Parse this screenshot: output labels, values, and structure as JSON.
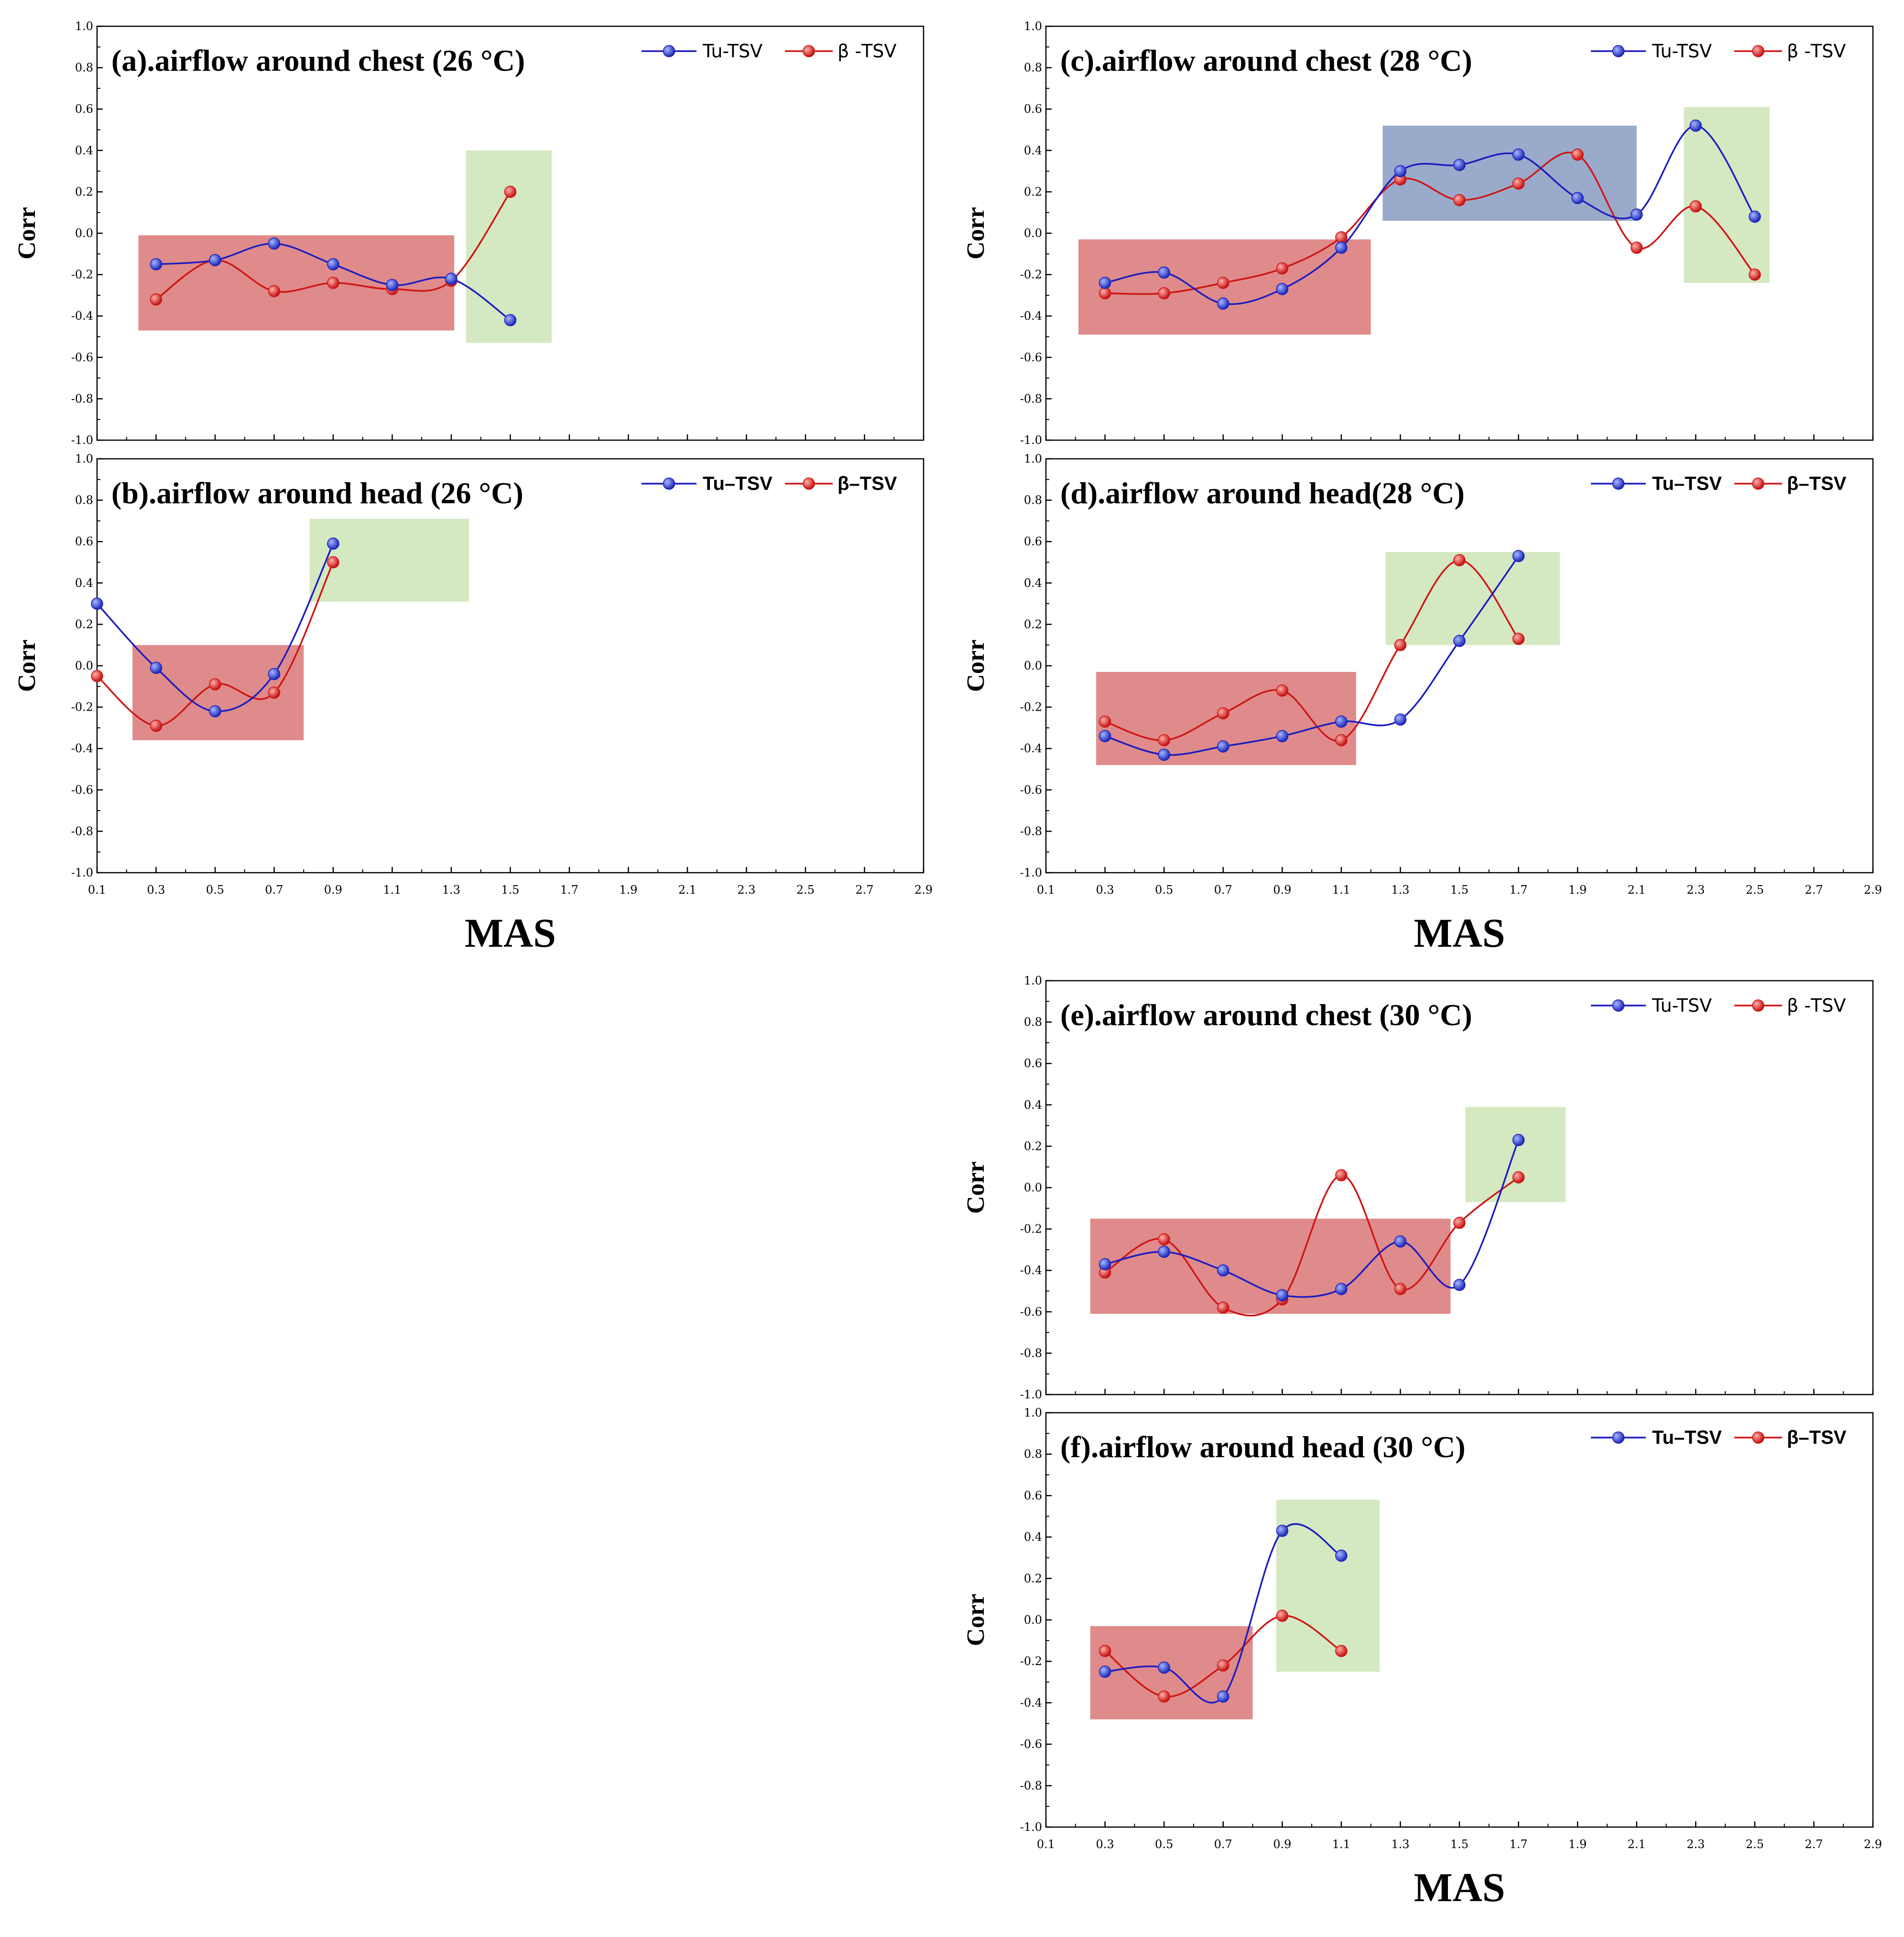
{
  "chart_data": [
    {
      "id": "a",
      "type": "line",
      "title": "(a).airflow around chest (26 °C)",
      "ylabel": "Corr",
      "xlabel": "",
      "xlim": [
        0.1,
        2.9
      ],
      "ylim": [
        -1.0,
        1.0
      ],
      "xticks": [
        "0.1",
        "0.3",
        "0.5",
        "0.7",
        "0.9",
        "1.1",
        "1.3",
        "1.5",
        "1.7",
        "1.9",
        "2.1",
        "2.3",
        "2.5",
        "2.7",
        "2.9"
      ],
      "yticks": [
        "1.0",
        "0.8",
        "0.6",
        "0.4",
        "0.2",
        "0.0",
        "-0.2",
        "-0.4",
        "-0.6",
        "-0.8",
        "-1.0"
      ],
      "show_xticks": false,
      "legend_bold": false,
      "series": [
        {
          "name": "Tu-TSV",
          "color": "#1c1cc0",
          "x": [
            0.3,
            0.5,
            0.7,
            0.9,
            1.1,
            1.3,
            1.5
          ],
          "y": [
            -0.15,
            -0.13,
            -0.05,
            -0.15,
            -0.25,
            -0.22,
            -0.42
          ]
        },
        {
          "name": "β -TSV",
          "color": "#d01414",
          "x": [
            0.3,
            0.5,
            0.7,
            0.9,
            1.1,
            1.3,
            1.5
          ],
          "y": [
            -0.32,
            -0.13,
            -0.28,
            -0.24,
            -0.27,
            -0.23,
            0.2
          ]
        }
      ],
      "regions": [
        {
          "color": "#d66a6a",
          "x": [
            0.24,
            1.31
          ],
          "y": [
            -0.47,
            -0.01
          ]
        },
        {
          "color": "#c8e1b0",
          "x": [
            1.35,
            1.64
          ],
          "y": [
            -0.53,
            0.4
          ]
        }
      ]
    },
    {
      "id": "b",
      "type": "line",
      "title": "(b).airflow around head (26 °C)",
      "ylabel": "Corr",
      "xlabel": "MAS",
      "xlim": [
        0.1,
        2.9
      ],
      "ylim": [
        -1.0,
        1.0
      ],
      "xticks": [
        "0.1",
        "0.3",
        "0.5",
        "0.7",
        "0.9",
        "1.1",
        "1.3",
        "1.5",
        "1.7",
        "1.9",
        "2.1",
        "2.3",
        "2.5",
        "2.7",
        "2.9"
      ],
      "yticks": [
        "1.0",
        "0.8",
        "0.6",
        "0.4",
        "0.2",
        "0.0",
        "-0.2",
        "-0.4",
        "-0.6",
        "-0.8",
        "-1.0"
      ],
      "show_xticks": true,
      "legend_bold": true,
      "series": [
        {
          "name": "Tu–TSV",
          "color": "#1c1cc0",
          "x": [
            0.1,
            0.3,
            0.5,
            0.7,
            0.9
          ],
          "y": [
            0.3,
            -0.01,
            -0.22,
            -0.04,
            0.59
          ]
        },
        {
          "name": "β–TSV",
          "color": "#d01414",
          "x": [
            0.1,
            0.3,
            0.5,
            0.7,
            0.9
          ],
          "y": [
            -0.05,
            -0.29,
            -0.09,
            -0.13,
            0.5
          ]
        }
      ],
      "regions": [
        {
          "color": "#d66a6a",
          "x": [
            0.22,
            0.8
          ],
          "y": [
            -0.36,
            0.1
          ]
        },
        {
          "color": "#c8e1b0",
          "x": [
            0.82,
            1.36
          ],
          "y": [
            0.31,
            0.71
          ]
        }
      ]
    },
    {
      "id": "c",
      "type": "line",
      "title": "(c).airflow around chest (28 °C)",
      "ylabel": "Corr",
      "xlabel": "",
      "xlim": [
        0.1,
        2.9
      ],
      "ylim": [
        -1.0,
        1.0
      ],
      "xticks": [
        "0.1",
        "0.3",
        "0.5",
        "0.7",
        "0.9",
        "1.1",
        "1.3",
        "1.5",
        "1.7",
        "1.9",
        "2.1",
        "2.3",
        "2.5",
        "2.7",
        "2.9"
      ],
      "yticks": [
        "1.0",
        "0.8",
        "0.6",
        "0.4",
        "0.2",
        "0.0",
        "-0.2",
        "-0.4",
        "-0.6",
        "-0.8",
        "-1.0"
      ],
      "show_xticks": false,
      "legend_bold": false,
      "series": [
        {
          "name": "Tu-TSV",
          "color": "#1c1cc0",
          "x": [
            0.3,
            0.5,
            0.7,
            0.9,
            1.1,
            1.3,
            1.5,
            1.7,
            1.9,
            2.1,
            2.3,
            2.5
          ],
          "y": [
            -0.24,
            -0.19,
            -0.34,
            -0.27,
            -0.07,
            0.3,
            0.33,
            0.38,
            0.17,
            0.09,
            0.52,
            0.08
          ]
        },
        {
          "name": "β -TSV",
          "color": "#d01414",
          "x": [
            0.3,
            0.5,
            0.7,
            0.9,
            1.1,
            1.3,
            1.5,
            1.7,
            1.9,
            2.1,
            2.3,
            2.5
          ],
          "y": [
            -0.29,
            -0.29,
            -0.24,
            -0.17,
            -0.02,
            0.26,
            0.16,
            0.24,
            0.38,
            -0.07,
            0.13,
            -0.2
          ]
        }
      ],
      "regions": [
        {
          "color": "#d66a6a",
          "x": [
            0.21,
            1.2
          ],
          "y": [
            -0.49,
            -0.03
          ]
        },
        {
          "color": "#7e92bb",
          "x": [
            1.24,
            2.1
          ],
          "y": [
            0.06,
            0.52
          ]
        },
        {
          "color": "#c8e1b0",
          "x": [
            2.26,
            2.55
          ],
          "y": [
            -0.24,
            0.61
          ]
        }
      ]
    },
    {
      "id": "d",
      "type": "line",
      "title": "(d).airflow around head(28 °C)",
      "ylabel": "Corr",
      "xlabel": "MAS",
      "xlim": [
        0.1,
        2.9
      ],
      "ylim": [
        -1.0,
        1.0
      ],
      "xticks": [
        "0.1",
        "0.3",
        "0.5",
        "0.7",
        "0.9",
        "1.1",
        "1.3",
        "1.5",
        "1.7",
        "1.9",
        "2.1",
        "2.3",
        "2.5",
        "2.7",
        "2.9"
      ],
      "yticks": [
        "1.0",
        "0.8",
        "0.6",
        "0.4",
        "0.2",
        "0.0",
        "-0.2",
        "-0.4",
        "-0.6",
        "-0.8",
        "-1.0"
      ],
      "show_xticks": true,
      "legend_bold": true,
      "series": [
        {
          "name": "Tu–TSV",
          "color": "#1c1cc0",
          "x": [
            0.3,
            0.5,
            0.7,
            0.9,
            1.1,
            1.3,
            1.5,
            1.7
          ],
          "y": [
            -0.34,
            -0.43,
            -0.39,
            -0.34,
            -0.27,
            -0.26,
            0.12,
            0.53
          ]
        },
        {
          "name": "β–TSV",
          "color": "#d01414",
          "x": [
            0.3,
            0.5,
            0.7,
            0.9,
            1.1,
            1.3,
            1.5,
            1.7
          ],
          "y": [
            -0.27,
            -0.36,
            -0.23,
            -0.12,
            -0.36,
            0.1,
            0.51,
            0.13
          ]
        }
      ],
      "regions": [
        {
          "color": "#d66a6a",
          "x": [
            0.27,
            1.15
          ],
          "y": [
            -0.48,
            -0.03
          ]
        },
        {
          "color": "#c8e1b0",
          "x": [
            1.25,
            1.84
          ],
          "y": [
            0.1,
            0.55
          ]
        }
      ]
    },
    {
      "id": "e",
      "type": "line",
      "title": "(e).airflow around chest (30 °C)",
      "ylabel": "Corr",
      "xlabel": "",
      "xlim": [
        0.1,
        2.9
      ],
      "ylim": [
        -1.0,
        1.0
      ],
      "xticks": [
        "0.1",
        "0.3",
        "0.5",
        "0.7",
        "0.9",
        "1.1",
        "1.3",
        "1.5",
        "1.7",
        "1.9",
        "2.1",
        "2.3",
        "2.5",
        "2.7",
        "2.9"
      ],
      "yticks": [
        "1.0",
        "0.8",
        "0.6",
        "0.4",
        "0.2",
        "0.0",
        "-0.2",
        "-0.4",
        "-0.6",
        "-0.8",
        "-1.0"
      ],
      "show_xticks": false,
      "legend_bold": false,
      "series": [
        {
          "name": "Tu-TSV",
          "color": "#1c1cc0",
          "x": [
            0.3,
            0.5,
            0.7,
            0.9,
            1.1,
            1.3,
            1.5,
            1.7
          ],
          "y": [
            -0.37,
            -0.31,
            -0.4,
            -0.52,
            -0.49,
            -0.26,
            -0.47,
            0.23
          ]
        },
        {
          "name": "β -TSV",
          "color": "#d01414",
          "x": [
            0.3,
            0.5,
            0.7,
            0.9,
            1.1,
            1.3,
            1.5,
            1.7
          ],
          "y": [
            -0.41,
            -0.25,
            -0.58,
            -0.54,
            0.06,
            -0.49,
            -0.17,
            0.05
          ]
        }
      ],
      "regions": [
        {
          "color": "#d66a6a",
          "x": [
            0.25,
            1.47
          ],
          "y": [
            -0.61,
            -0.15
          ]
        },
        {
          "color": "#c8e1b0",
          "x": [
            1.52,
            1.86
          ],
          "y": [
            -0.07,
            0.39
          ]
        }
      ]
    },
    {
      "id": "f",
      "type": "line",
      "title": "(f).airflow around head (30 °C)",
      "ylabel": "Corr",
      "xlabel": "MAS",
      "xlim": [
        0.1,
        2.9
      ],
      "ylim": [
        -1.0,
        1.0
      ],
      "xticks": [
        "0.1",
        "0.3",
        "0.5",
        "0.7",
        "0.9",
        "1.1",
        "1.3",
        "1.5",
        "1.7",
        "1.9",
        "2.1",
        "2.3",
        "2.5",
        "2.7",
        "2.9"
      ],
      "yticks": [
        "1.0",
        "0.8",
        "0.6",
        "0.4",
        "0.2",
        "0.0",
        "-0.2",
        "-0.4",
        "-0.6",
        "-0.8",
        "-1.0"
      ],
      "show_xticks": true,
      "legend_bold": true,
      "series": [
        {
          "name": "Tu–TSV",
          "color": "#1c1cc0",
          "x": [
            0.3,
            0.5,
            0.7,
            0.9,
            1.1
          ],
          "y": [
            -0.25,
            -0.23,
            -0.37,
            0.43,
            0.31
          ]
        },
        {
          "name": "β–TSV",
          "color": "#d01414",
          "x": [
            0.3,
            0.5,
            0.7,
            0.9,
            1.1
          ],
          "y": [
            -0.15,
            -0.37,
            -0.22,
            0.02,
            -0.15
          ]
        }
      ],
      "regions": [
        {
          "color": "#d66a6a",
          "x": [
            0.25,
            0.8
          ],
          "y": [
            -0.48,
            -0.03
          ]
        },
        {
          "color": "#c8e1b0",
          "x": [
            0.88,
            1.23
          ],
          "y": [
            -0.25,
            0.58
          ]
        }
      ]
    }
  ]
}
